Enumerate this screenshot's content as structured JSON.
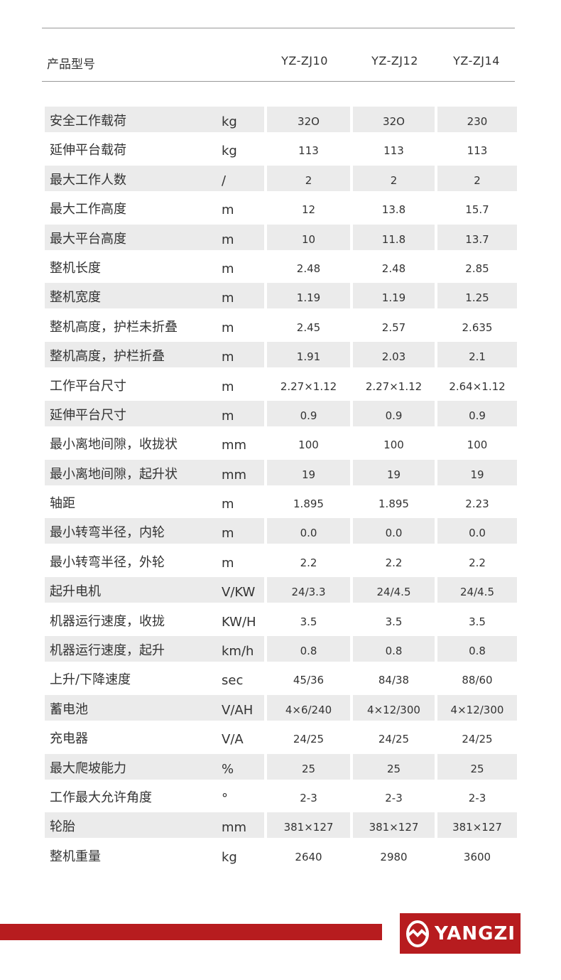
{
  "header": {
    "label": "产品型号",
    "models": [
      "YZ-ZJ10",
      "YZ-ZJ12",
      "YZ-ZJ14"
    ]
  },
  "rows": [
    {
      "label": "安全工作载荷",
      "unit": "kg",
      "values": [
        "32O",
        "32O",
        "230"
      ]
    },
    {
      "label": "延伸平台载荷",
      "unit": "kg",
      "values": [
        "113",
        "113",
        "113"
      ]
    },
    {
      "label": "最大工作人数",
      "unit": "/",
      "values": [
        "2",
        "2",
        "2"
      ]
    },
    {
      "label": "最大工作高度",
      "unit": "m",
      "values": [
        "12",
        "13.8",
        "15.7"
      ]
    },
    {
      "label": "最大平台高度",
      "unit": "m",
      "values": [
        "10",
        "11.8",
        "13.7"
      ]
    },
    {
      "label": "整机长度",
      "unit": "m",
      "values": [
        "2.48",
        "2.48",
        "2.85"
      ]
    },
    {
      "label": "整机宽度",
      "unit": "m",
      "values": [
        "1.19",
        "1.19",
        "1.25"
      ]
    },
    {
      "label": "整机高度，护栏未折叠",
      "unit": "m",
      "values": [
        "2.45",
        "2.57",
        "2.635"
      ]
    },
    {
      "label": "整机高度，护栏折叠",
      "unit": "m",
      "values": [
        "1.91",
        "2.03",
        "2.1"
      ]
    },
    {
      "label": "工作平台尺寸",
      "unit": "m",
      "values": [
        "2.27×1.12",
        "2.27×1.12",
        "2.64×1.12"
      ]
    },
    {
      "label": "延伸平台尺寸",
      "unit": "m",
      "values": [
        "0.9",
        "0.9",
        "0.9"
      ]
    },
    {
      "label": "最小离地间隙，收拢状",
      "unit": "mm",
      "values": [
        "100",
        "100",
        "100"
      ]
    },
    {
      "label": "最小离地间隙，起升状",
      "unit": "mm",
      "values": [
        "19",
        "19",
        "19"
      ]
    },
    {
      "label": "轴距",
      "unit": "m",
      "values": [
        "1.895",
        "1.895",
        "2.23"
      ]
    },
    {
      "label": "最小转弯半径，内轮",
      "unit": "m",
      "values": [
        "0.0",
        "0.0",
        "0.0"
      ]
    },
    {
      "label": "最小转弯半径，外轮",
      "unit": "m",
      "values": [
        "2.2",
        "2.2",
        "2.2"
      ]
    },
    {
      "label": "起升电机",
      "unit": "V/KW",
      "values": [
        "24/3.3",
        "24/4.5",
        "24/4.5"
      ]
    },
    {
      "label": "机器运行速度，收拢",
      "unit": "KW/H",
      "values": [
        "3.5",
        "3.5",
        "3.5"
      ]
    },
    {
      "label": "机器运行速度，起升",
      "unit": "km/h",
      "values": [
        "0.8",
        "0.8",
        "0.8"
      ]
    },
    {
      "label": "上升/下降速度",
      "unit": "sec",
      "values": [
        "45/36",
        "84/38",
        "88/60"
      ]
    },
    {
      "label": "蓄电池",
      "unit": "V/AH",
      "values": [
        "4×6/240",
        "4×12/300",
        "4×12/300"
      ]
    },
    {
      "label": "充电器",
      "unit": "V/A",
      "values": [
        "24/25",
        "24/25",
        "24/25"
      ]
    },
    {
      "label": "最大爬坡能力",
      "unit": "%",
      "values": [
        "25",
        "25",
        "25"
      ]
    },
    {
      "label": "工作最大允许角度",
      "unit": "°",
      "values": [
        "2-3",
        "2-3",
        "2-3"
      ]
    },
    {
      "label": "轮胎",
      "unit": "mm",
      "values": [
        "381×127",
        "381×127",
        "381×127"
      ]
    },
    {
      "label": "整机重量",
      "unit": "kg",
      "values": [
        "2640",
        "2980",
        "3600"
      ]
    }
  ],
  "footer": {
    "brand": "YANGZI",
    "brand_color": "#b71c1f",
    "icon": "yangzi-logo-icon"
  }
}
